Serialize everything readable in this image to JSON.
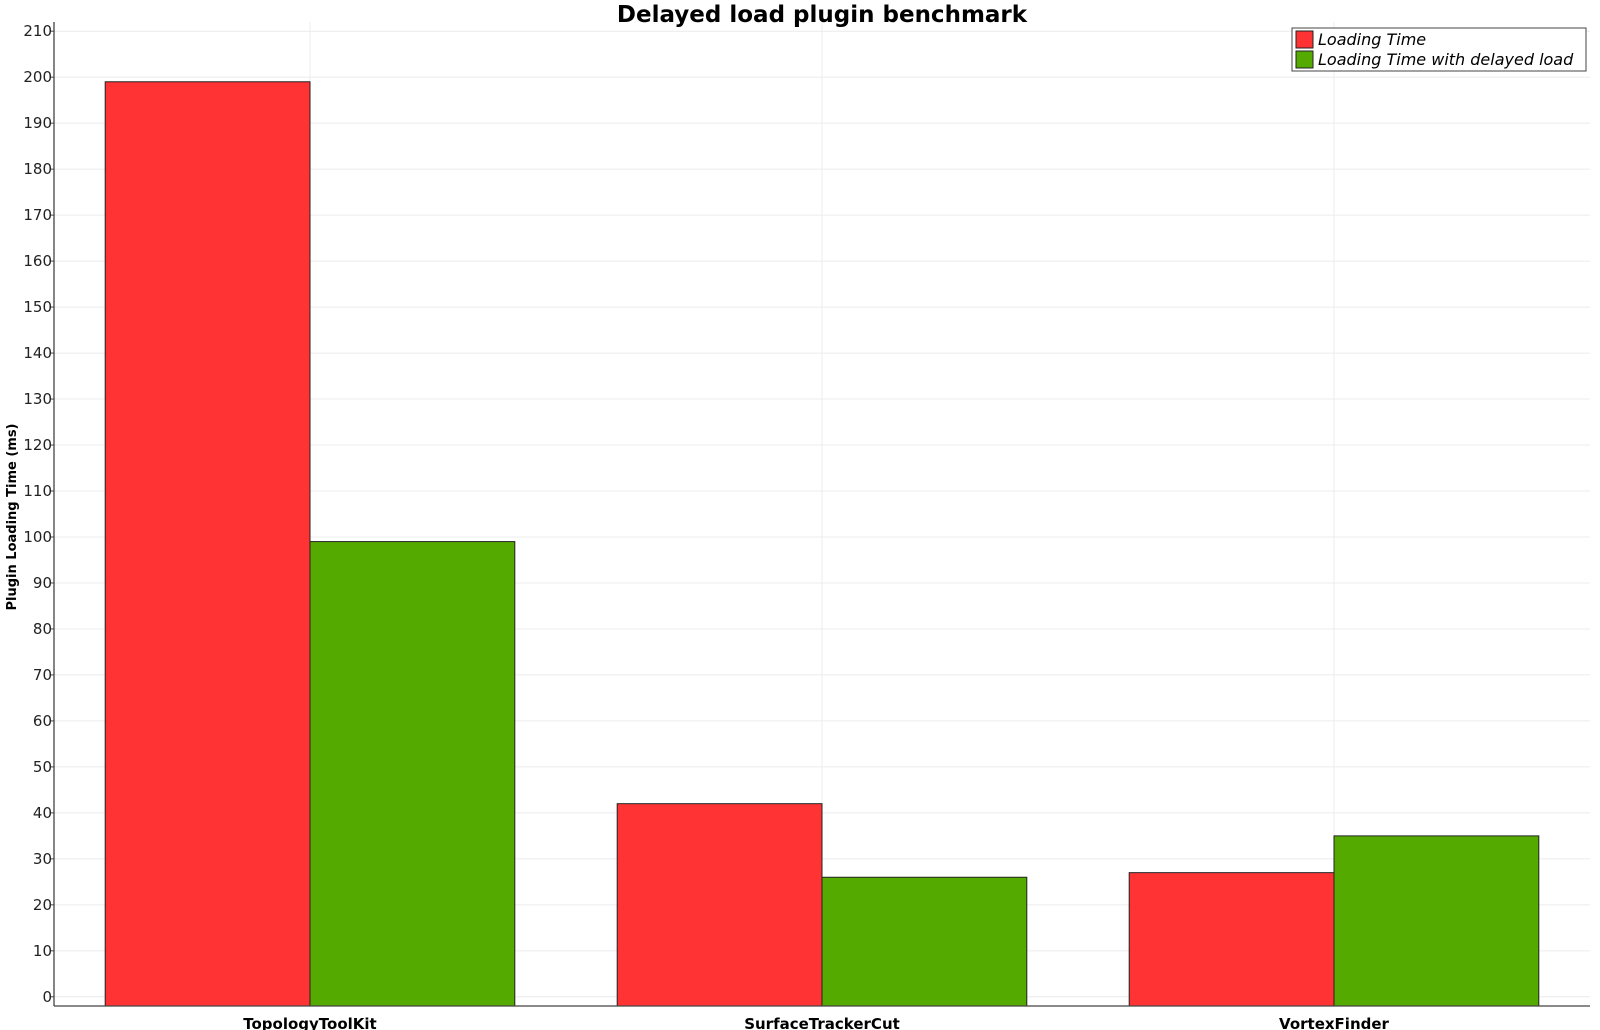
{
  "chart_data": {
    "type": "bar",
    "title": "Delayed load plugin benchmark",
    "ylabel": "Plugin Loading Time (ms)",
    "xlabel": "",
    "categories": [
      "TopologyToolKit",
      "SurfaceTrackerCut",
      "VortexFinder"
    ],
    "series": [
      {
        "name": "Loading Time",
        "color": "#ff3333",
        "values": [
          199,
          42,
          27
        ]
      },
      {
        "name": "Loading Time with delayed load",
        "color": "#55aa00",
        "values": [
          99,
          26,
          35
        ]
      }
    ],
    "ylim": [
      -2,
      212
    ],
    "yticks": [
      0,
      10,
      20,
      30,
      40,
      50,
      60,
      70,
      80,
      90,
      100,
      110,
      120,
      130,
      140,
      150,
      160,
      170,
      180,
      190,
      200,
      210
    ],
    "grid": true,
    "legend_position": "top-right"
  }
}
